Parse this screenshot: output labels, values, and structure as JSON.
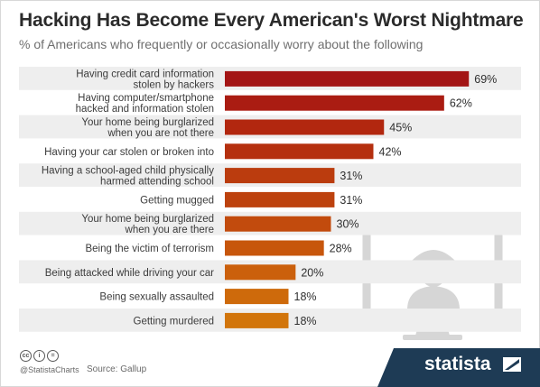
{
  "title": "Hacking Has Become Every American's Worst Nightmare",
  "subtitle": "% of Americans who frequently or occasionally worry about the following",
  "chart_data": {
    "type": "bar",
    "orientation": "horizontal",
    "title": "Hacking Has Become Every American's Worst Nightmare",
    "subtitle": "% of Americans who frequently or occasionally worry about the following",
    "categories": [
      [
        "Having credit card information",
        "stolen by hackers"
      ],
      [
        "Having computer/smartphone",
        "hacked and information stolen"
      ],
      [
        "Your home being burglarized",
        "when you are not there"
      ],
      [
        "Having your car stolen or broken into"
      ],
      [
        "Having a school-aged child physically",
        "harmed attending school"
      ],
      [
        "Getting mugged"
      ],
      [
        "Your home being burglarized",
        "when you are there"
      ],
      [
        "Being the victim of terrorism"
      ],
      [
        "Being attacked while driving your car"
      ],
      [
        "Being sexually assaulted"
      ],
      [
        "Getting murdered"
      ]
    ],
    "values": [
      69,
      62,
      45,
      42,
      31,
      31,
      30,
      28,
      20,
      18,
      18
    ],
    "value_labels": [
      "69%",
      "62%",
      "45%",
      "42%",
      "31%",
      "31%",
      "30%",
      "28%",
      "20%",
      "18%",
      "18%"
    ],
    "unit": "%",
    "xlim": [
      0,
      72
    ],
    "colors": [
      "#a31414",
      "#aa1c12",
      "#b2270f",
      "#b5300f",
      "#bb3c0e",
      "#bd420e",
      "#c24b0d",
      "#c7560c",
      "#cb600c",
      "#ce6a0b",
      "#d2750b"
    ],
    "row_band_color": "#eeeeee",
    "grid": false
  },
  "decoration": {
    "icon": "computer-monitor-with-spy-icon",
    "color": "#d6d6d6"
  },
  "footer": {
    "license_icons": [
      "cc",
      "i",
      "="
    ],
    "handle": "@StatistaCharts",
    "source": "Source: Gallup",
    "brand": "statista",
    "brand_color": "#1e3b55"
  }
}
